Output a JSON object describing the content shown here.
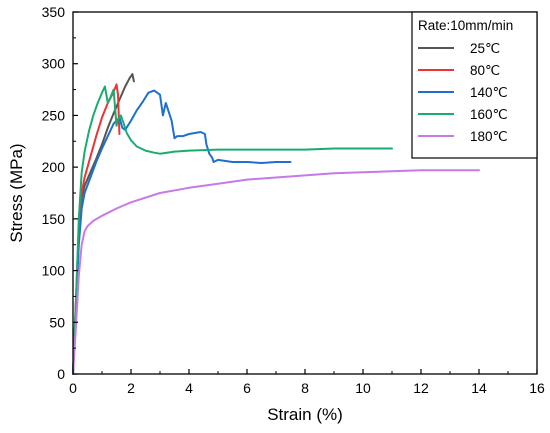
{
  "chart_data": {
    "type": "line",
    "xlabel": "Strain (%)",
    "ylabel": "Stress (MPa)",
    "xlim": [
      0,
      16
    ],
    "ylim": [
      0,
      350
    ],
    "xticks": [
      "0",
      "2",
      "4",
      "6",
      "8",
      "10",
      "12",
      "14",
      "16"
    ],
    "yticks": [
      "0",
      "50",
      "100",
      "150",
      "200",
      "250",
      "300",
      "350"
    ],
    "grid": false,
    "legend": {
      "title": "Rate:10mm/min",
      "position": "top-right"
    },
    "series": [
      {
        "name": "25℃",
        "color": "#555555",
        "x": [
          0,
          0.1,
          0.2,
          0.3,
          0.4,
          0.6,
          0.8,
          1.0,
          1.2,
          1.4,
          1.6,
          1.8,
          1.95,
          2.05,
          2.1
        ],
        "y": [
          0,
          65,
          135,
          170,
          182,
          195,
          208,
          222,
          238,
          252,
          265,
          278,
          286,
          290,
          283
        ]
      },
      {
        "name": "80℃",
        "color": "#ee3333",
        "x": [
          0,
          0.1,
          0.2,
          0.3,
          0.4,
          0.6,
          0.8,
          1.0,
          1.2,
          1.35,
          1.45,
          1.5,
          1.55,
          1.6
        ],
        "y": [
          0,
          70,
          140,
          175,
          190,
          210,
          230,
          248,
          262,
          270,
          276,
          280,
          270,
          232
        ]
      },
      {
        "name": "140℃",
        "color": "#1f6fcf",
        "x": [
          0,
          0.1,
          0.2,
          0.3,
          0.4,
          0.6,
          0.8,
          1.0,
          1.2,
          1.4,
          1.6,
          1.7,
          1.8,
          2.0,
          2.2,
          2.4,
          2.6,
          2.8,
          3.0,
          3.1,
          3.2,
          3.4,
          3.5,
          3.6,
          3.8,
          4.0,
          4.2,
          4.4,
          4.55,
          4.6,
          4.7,
          4.8,
          4.85,
          5.0,
          5.5,
          6.0,
          6.5,
          7.0,
          7.5
        ],
        "y": [
          0,
          60,
          125,
          160,
          175,
          190,
          205,
          218,
          230,
          242,
          248,
          238,
          236,
          245,
          255,
          263,
          272,
          274,
          270,
          250,
          262,
          245,
          228,
          230,
          230,
          232,
          233,
          234,
          232,
          222,
          213,
          209,
          205,
          207,
          205,
          205,
          204,
          205,
          205
        ]
      },
      {
        "name": "160℃",
        "color": "#1aab70",
        "x": [
          0,
          0.1,
          0.2,
          0.3,
          0.4,
          0.55,
          0.7,
          0.85,
          1.0,
          1.1,
          1.2,
          1.3,
          1.4,
          1.5,
          1.55,
          1.65,
          1.75,
          1.85,
          2.0,
          2.2,
          2.5,
          2.8,
          3.0,
          3.5,
          4.0,
          5.0,
          6.0,
          7.0,
          8.0,
          9.0,
          10.0,
          11.0
        ],
        "y": [
          0,
          70,
          150,
          195,
          215,
          235,
          250,
          262,
          272,
          278,
          262,
          268,
          275,
          240,
          246,
          250,
          242,
          233,
          226,
          220,
          216,
          214,
          213,
          215,
          216,
          217,
          217,
          217,
          217,
          218,
          218,
          218
        ]
      },
      {
        "name": "180℃",
        "color": "#c77ae6",
        "x": [
          0,
          0.1,
          0.2,
          0.3,
          0.4,
          0.5,
          0.7,
          1.0,
          1.5,
          2.0,
          3.0,
          4.0,
          5.0,
          6.0,
          7.0,
          8.0,
          9.0,
          10.0,
          11.0,
          12.0,
          13.0,
          14.0
        ],
        "y": [
          0,
          45,
          95,
          125,
          138,
          143,
          148,
          153,
          160,
          166,
          175,
          180,
          184,
          188,
          190,
          192,
          194,
          195,
          196,
          197,
          197,
          197
        ]
      }
    ]
  }
}
